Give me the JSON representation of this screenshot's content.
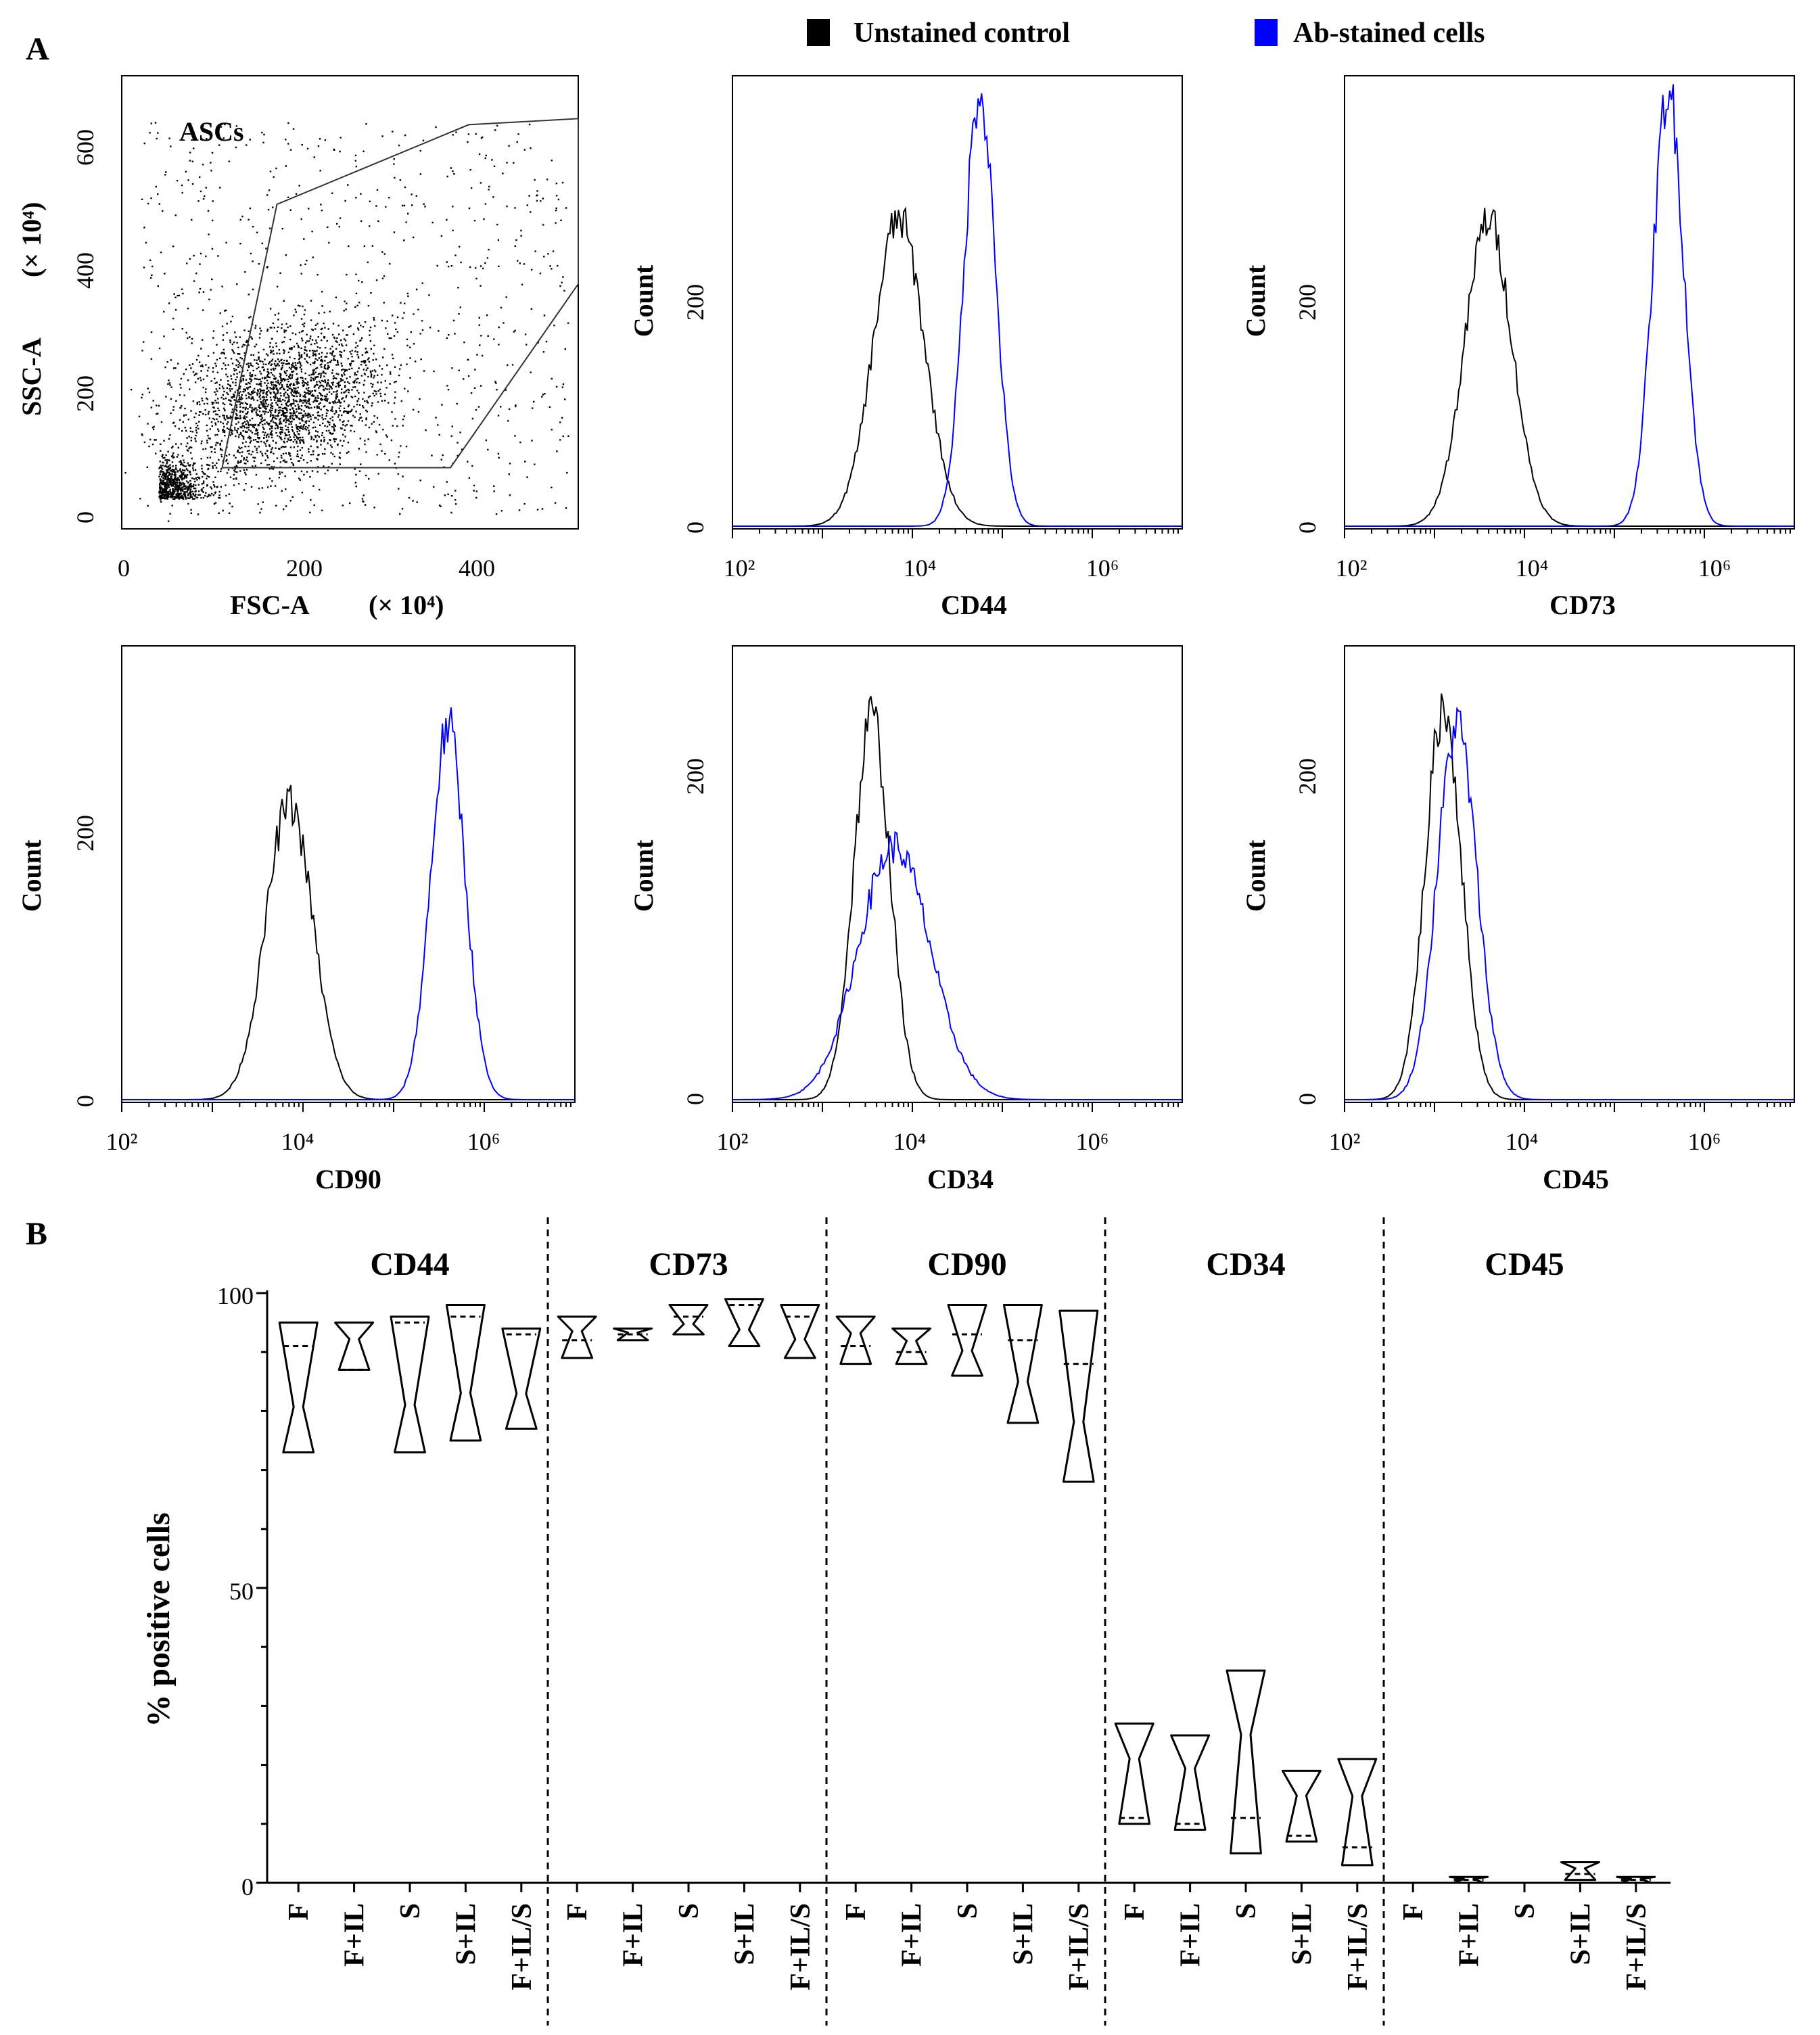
{
  "panel_labels": {
    "a": "A",
    "b": "B"
  },
  "legend": [
    {
      "label": "Unstained control",
      "color": "#000000"
    },
    {
      "label": "Ab-stained cells",
      "color": "#0000ff"
    }
  ],
  "colors": {
    "unstained": "#000000",
    "stained": "#0000ff"
  },
  "scatter": {
    "gate_label": "ASCs",
    "xlabel": "FSC-A",
    "xunit": "(× 10⁴)",
    "ylabel": "SSC-A",
    "yunit": "(× 10⁴)",
    "xticks": [
      "0",
      "200",
      "400"
    ],
    "yticks": [
      "0",
      "200",
      "400",
      "600"
    ]
  },
  "log_ticks": [
    "10²",
    "10⁴",
    "10⁶"
  ],
  "count_label": "Count",
  "chart_data": [
    {
      "type": "scatter",
      "title": "ASCs",
      "xlabel": "FSC-A (× 10⁴)",
      "ylabel": "SSC-A (× 10⁴)",
      "xlim": [
        0,
        500
      ],
      "ylim": [
        -20,
        720
      ],
      "gate_polygon": [
        [
          110,
          80
        ],
        [
          170,
          510
        ],
        [
          380,
          640
        ],
        [
          500,
          650
        ],
        [
          500,
          380
        ],
        [
          360,
          80
        ]
      ]
    },
    {
      "type": "line",
      "marker": "CD44",
      "xlabel": "CD44",
      "ylabel": "Count",
      "ylim": [
        0,
        340
      ],
      "yticks": [
        "0",
        "200"
      ],
      "xlim_log10": [
        2,
        7
      ],
      "series": [
        {
          "name": "Unstained control",
          "center_log10": 3.85,
          "width": 0.28,
          "peak": 232
        },
        {
          "name": "Ab-stained cells",
          "center_log10": 4.75,
          "width": 0.17,
          "peak": 330
        }
      ]
    },
    {
      "type": "line",
      "marker": "CD73",
      "xlabel": "CD73",
      "ylabel": "Count",
      "ylim": [
        0,
        340
      ],
      "yticks": [
        "0",
        "200"
      ],
      "xlim_log10": [
        2,
        7
      ],
      "series": [
        {
          "name": "Unstained control",
          "center_log10": 3.6,
          "width": 0.26,
          "peak": 232
        },
        {
          "name": "Ab-stained cells",
          "center_log10": 5.6,
          "width": 0.17,
          "peak": 330
        }
      ]
    },
    {
      "type": "line",
      "marker": "CD90",
      "xlabel": "CD90",
      "ylabel": "Count",
      "ylim": [
        0,
        340
      ],
      "yticks": [
        "0",
        "200"
      ],
      "xlim_log10": [
        2,
        7
      ],
      "series": [
        {
          "name": "Unstained control",
          "center_log10": 3.85,
          "width": 0.26,
          "peak": 222
        },
        {
          "name": "Ab-stained cells",
          "center_log10": 5.6,
          "width": 0.19,
          "peak": 280
        }
      ]
    },
    {
      "type": "line",
      "marker": "CD34",
      "xlabel": "CD34",
      "ylabel": "Count",
      "ylim": [
        0,
        260
      ],
      "yticks": [
        "0",
        "200"
      ],
      "xlim_log10": [
        2,
        7
      ],
      "series": [
        {
          "name": "Unstained control",
          "center_log10": 3.55,
          "width": 0.2,
          "peak": 220
        },
        {
          "name": "Ab-stained cells",
          "center_log10": 3.8,
          "width": 0.4,
          "peak": 145
        }
      ]
    },
    {
      "type": "line",
      "marker": "CD45",
      "xlabel": "CD45",
      "ylabel": "Count",
      "ylim": [
        0,
        260
      ],
      "yticks": [
        "0",
        "200"
      ],
      "xlim_log10": [
        2,
        7
      ],
      "series": [
        {
          "name": "Unstained control",
          "center_log10": 3.1,
          "width": 0.2,
          "peak": 225
        },
        {
          "name": "Ab-stained cells",
          "center_log10": 3.25,
          "width": 0.22,
          "peak": 215
        }
      ]
    },
    {
      "type": "violin",
      "ylabel": "% positive cells",
      "ylim": [
        0,
        100
      ],
      "yticks": [
        "0",
        "50",
        "100"
      ],
      "groups": [
        "F",
        "F+IL",
        "S",
        "S+IL",
        "F+IL/S"
      ],
      "markers": [
        {
          "name": "CD44",
          "violins": [
            {
              "min": 73,
              "max": 95,
              "median": 91
            },
            {
              "min": 87,
              "max": 95,
              "median": 87
            },
            {
              "min": 73,
              "max": 96,
              "median": 95
            },
            {
              "min": 75,
              "max": 98,
              "median": 96
            },
            {
              "min": 77,
              "max": 94,
              "median": 93
            }
          ]
        },
        {
          "name": "CD73",
          "violins": [
            {
              "min": 89,
              "max": 96,
              "median": 92
            },
            {
              "min": 92,
              "max": 94,
              "median": 93
            },
            {
              "min": 93,
              "max": 98,
              "median": 96
            },
            {
              "min": 91,
              "max": 99,
              "median": 98
            },
            {
              "min": 89,
              "max": 98,
              "median": 96
            }
          ]
        },
        {
          "name": "CD90",
          "violins": [
            {
              "min": 88,
              "max": 96,
              "median": 91
            },
            {
              "min": 88,
              "max": 94,
              "median": 90
            },
            {
              "min": 86,
              "max": 98,
              "median": 93
            },
            {
              "min": 78,
              "max": 98,
              "median": 92
            },
            {
              "min": 68,
              "max": 97,
              "median": 88
            }
          ]
        },
        {
          "name": "CD34",
          "violins": [
            {
              "min": 10,
              "max": 27,
              "median": 11
            },
            {
              "min": 9,
              "max": 25,
              "median": 10
            },
            {
              "min": 5,
              "max": 36,
              "median": 11
            },
            {
              "min": 7,
              "max": 19,
              "median": 8
            },
            {
              "min": 3,
              "max": 21,
              "median": 6
            }
          ]
        },
        {
          "name": "CD45",
          "violins": [
            {
              "min": 0,
              "max": 0,
              "median": 0
            },
            {
              "min": 0,
              "max": 1,
              "median": 0.5
            },
            {
              "min": 0,
              "max": 0,
              "median": 0
            },
            {
              "min": 0.5,
              "max": 3.5,
              "median": 1.5
            },
            {
              "min": 0,
              "max": 1,
              "median": 0.5
            }
          ]
        }
      ]
    }
  ]
}
